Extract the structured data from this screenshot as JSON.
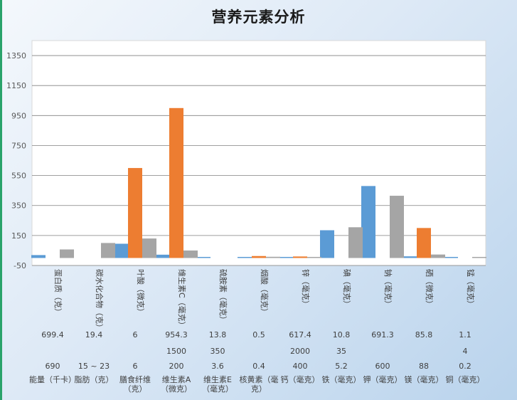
{
  "colors": {
    "series1": "#5b9bd5",
    "series2": "#ed7d31",
    "series3": "#a5a5a5",
    "grid": "#808080",
    "plot_bg": "#ffffff"
  },
  "chart_data": {
    "type": "bar",
    "title": "营养元素分析",
    "ylim": [
      -50,
      1450
    ],
    "yticks": [
      -50,
      150,
      350,
      550,
      750,
      950,
      1150,
      1350
    ],
    "ytick_labels": [
      "-50",
      "150",
      "350",
      "550",
      "750",
      "950",
      "1150",
      "1350"
    ],
    "grid": true,
    "categories": [
      "蛋白质（克）",
      "碳水化合物（克）",
      "叶酸（微克）",
      "维生素C（毫克）",
      "硫胺素（毫克）",
      "烟酸（毫克）",
      "锌（毫克）",
      "碘（毫克）",
      "钠（毫克）",
      "硒（微克）",
      "锰（毫克）"
    ],
    "x": [
      {
        "a": "蛋白质（克）",
        "b": "能量（千卡）"
      },
      {
        "a": "碳水化合物（克）",
        "b": "脂肪（克）"
      },
      {
        "a": "叶酸（微克）",
        "b": "膳食纤维（克）"
      },
      {
        "a": "维生素C（毫克）",
        "b": "维生素A（微克）"
      },
      {
        "a": "硫胺素（毫克）",
        "b": "维生素E（毫克）"
      },
      {
        "a": "烟酸（毫克）",
        "b": "核黄素（毫克）"
      },
      {
        "a": "锌（毫克）",
        "b": "钙（毫克）"
      },
      {
        "a": "碘（毫克）",
        "b": "铁（毫克）"
      },
      {
        "a": "钠（毫克）",
        "b": "钾（毫克）"
      },
      {
        "a": "硒（微克）",
        "b": "镁（毫克）"
      },
      {
        "a": "锰（毫克）",
        "b": "铜（毫克）"
      }
    ],
    "series": [
      {
        "values": [
          19.4,
          0,
          95,
          22,
          3.6,
          0.5,
          4.4,
          185,
          480,
          11,
          0.2
        ]
      },
      {
        "values": [
          0,
          0,
          600,
          1000,
          0,
          13,
          10,
          0,
          0,
          200,
          0
        ]
      },
      {
        "values": [
          57,
          100,
          130,
          50,
          0,
          8,
          3,
          205,
          415,
          23,
          1.1
        ]
      }
    ],
    "table": {
      "rows": [
        [
          "699.4",
          "19.4",
          "6",
          "954.3",
          "13.8",
          "0.5",
          "617.4",
          "10.8",
          "691.3",
          "85.8",
          "1.1"
        ],
        [
          "",
          "",
          "",
          "1500",
          "350",
          "",
          "2000",
          "35",
          "",
          "",
          "4"
        ],
        [
          "690",
          "15 ~ 23",
          "6",
          "200",
          "3.6",
          "0.4",
          "400",
          "5.2",
          "600",
          "88",
          "0.2"
        ]
      ],
      "row_labels": [
        [
          "能量（千卡）"
        ],
        [
          "脂肪（克）"
        ],
        [
          "膳食纤维",
          "（克）"
        ],
        [
          "维生素A",
          "（微克）"
        ],
        [
          "维生素E",
          "（毫克）"
        ],
        [
          "核黄素（毫",
          "克）"
        ],
        [
          "钙（毫克）"
        ],
        [
          "铁（毫克）"
        ],
        [
          "钾（毫克）"
        ],
        [
          "镁（毫克）"
        ],
        [
          "铜（毫克）"
        ]
      ]
    }
  }
}
